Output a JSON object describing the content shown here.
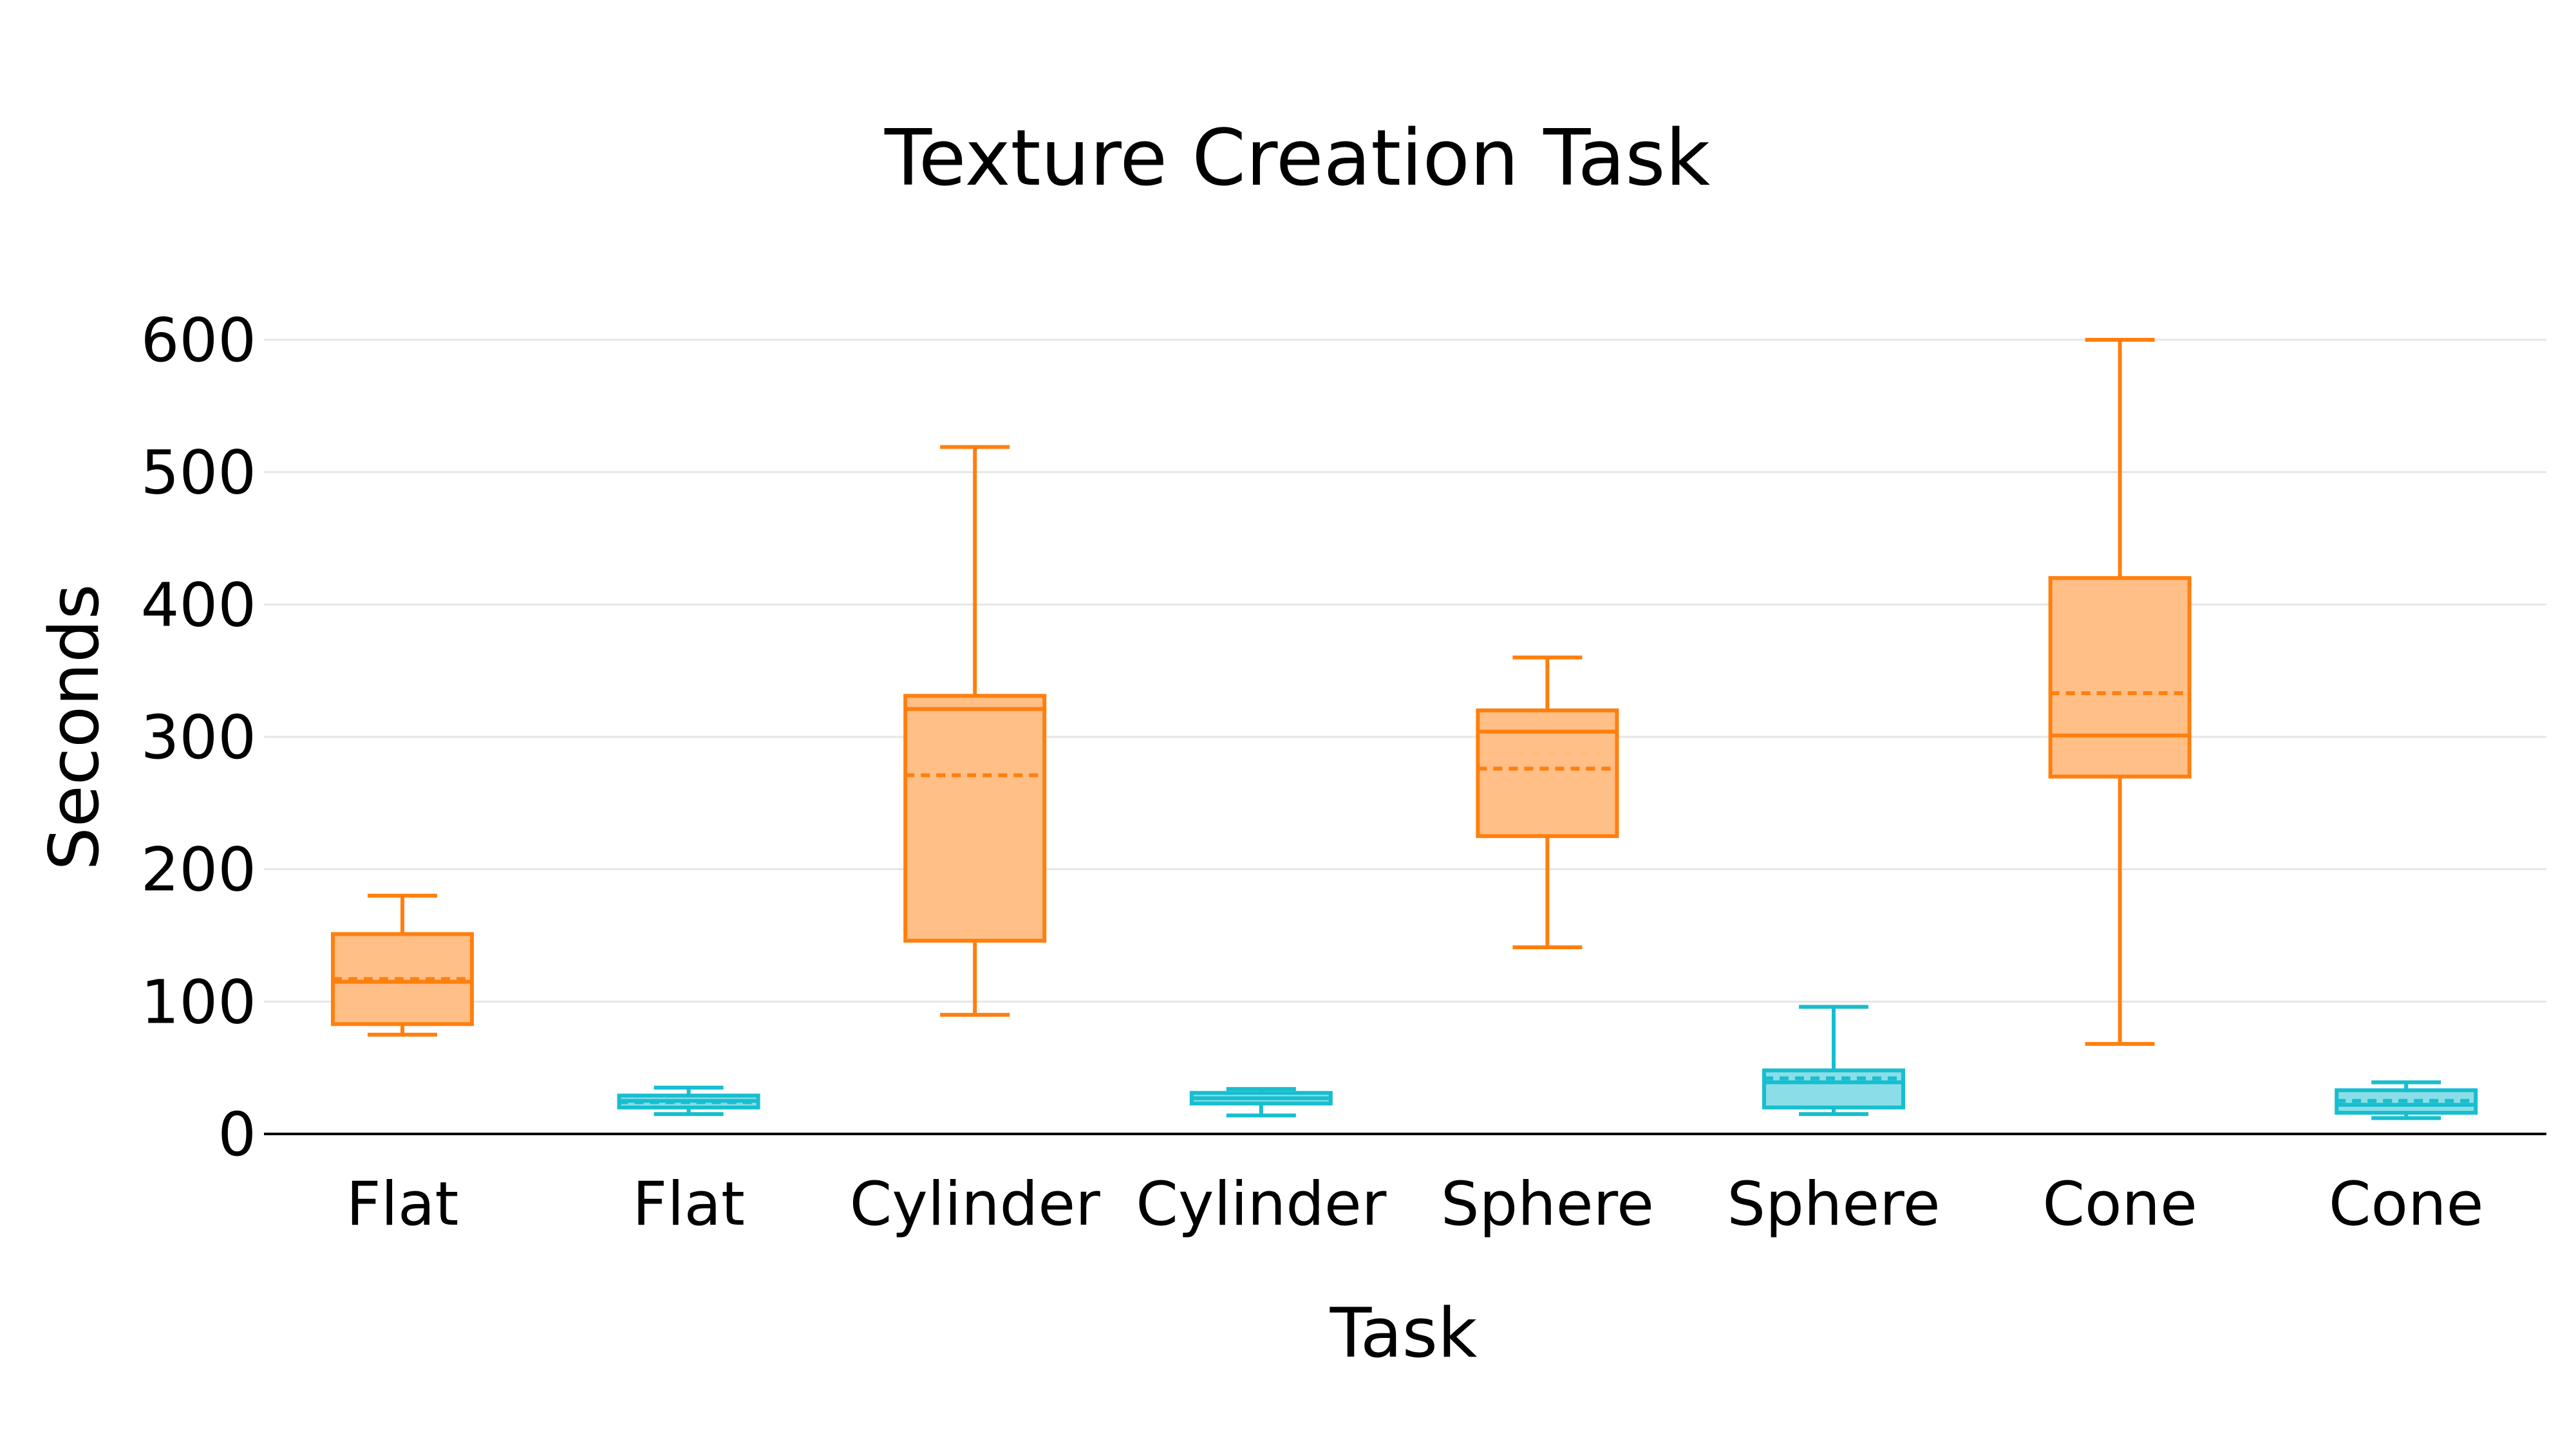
{
  "chart_data": {
    "type": "box",
    "title": "Texture Creation Task",
    "xlabel": "Task",
    "ylabel": "Seconds",
    "ylim": [
      0,
      620
    ],
    "yticks": [
      0,
      100,
      200,
      300,
      400,
      500,
      600
    ],
    "grid": true,
    "legend": "none",
    "categories": [
      "Flat",
      "Flat",
      "Cylinder",
      "Cylinder",
      "Sphere",
      "Sphere",
      "Cone",
      "Cone"
    ],
    "colors": {
      "orange_stroke": "#ff7f0e",
      "orange_fill": "#ffbf86",
      "cyan_stroke": "#17becf",
      "cyan_fill": "#8bdee7"
    },
    "boxes": [
      {
        "category": "Flat",
        "color": "orange",
        "min": 75,
        "q1": 83,
        "median": 115,
        "mean": 117,
        "q3": 151,
        "max": 180
      },
      {
        "category": "Flat",
        "color": "cyan",
        "min": 15,
        "q1": 20,
        "median": 25,
        "mean": 24,
        "q3": 29,
        "max": 35
      },
      {
        "category": "Cylinder",
        "color": "orange",
        "min": 90,
        "q1": 146,
        "median": 321,
        "mean": 271,
        "q3": 331,
        "max": 519
      },
      {
        "category": "Cylinder",
        "color": "cyan",
        "min": 14,
        "q1": 23,
        "median": 27,
        "mean": 27,
        "q3": 31,
        "max": 34
      },
      {
        "category": "Sphere",
        "color": "orange",
        "min": 141,
        "q1": 225,
        "median": 304,
        "mean": 276,
        "q3": 320,
        "max": 360
      },
      {
        "category": "Sphere",
        "color": "cyan",
        "min": 15,
        "q1": 20,
        "median": 39,
        "mean": 42,
        "q3": 48,
        "max": 96
      },
      {
        "category": "Cone",
        "color": "orange",
        "min": 68,
        "q1": 270,
        "median": 301,
        "mean": 333,
        "q3": 420,
        "max": 600
      },
      {
        "category": "Cone",
        "color": "cyan",
        "min": 12,
        "q1": 16,
        "median": 22,
        "mean": 25,
        "q3": 33,
        "max": 39
      }
    ]
  }
}
